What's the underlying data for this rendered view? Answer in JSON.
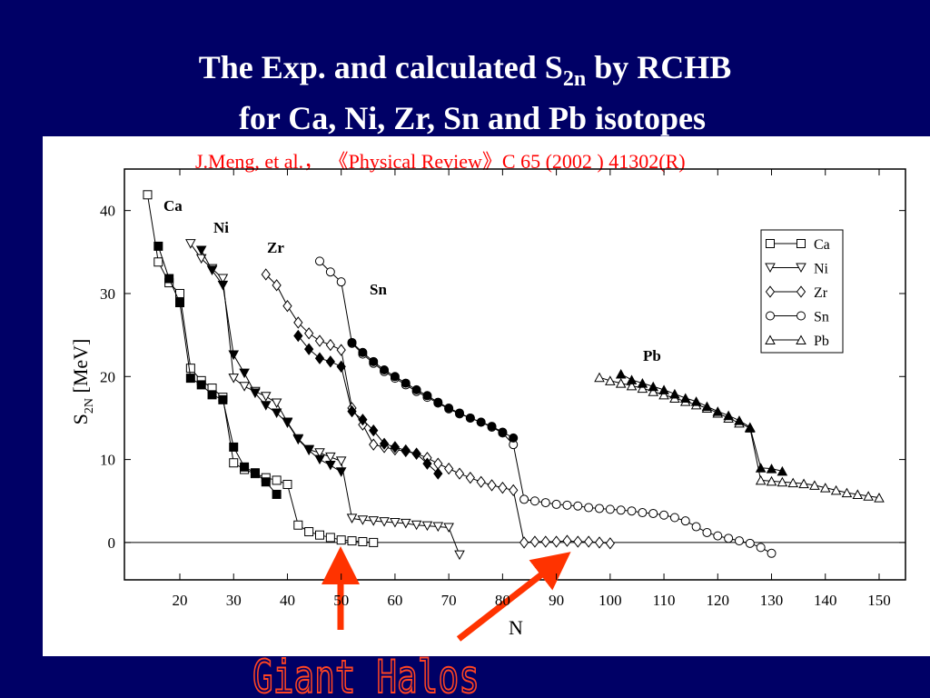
{
  "chart_data": {
    "type": "line",
    "title_line1": [
      "The Exp.  and calculated S",
      "2n",
      " by RCHB"
    ],
    "title_line2": "for Ca, Ni, Zr, Sn and Pb isotopes",
    "citation": "J.Meng, et al.， 《Physical Review》C 65 (2002 ) 41302(R)",
    "x_label": "N",
    "y_label": [
      "S",
      "2N",
      " [MeV]"
    ],
    "annotation": "Giant Halos",
    "color": "#000000",
    "xlim": [
      9.7,
      154.9
    ],
    "ylim": [
      -4.5,
      45
    ],
    "xticks": [
      20,
      30,
      40,
      50,
      60,
      70,
      80,
      90,
      100,
      110,
      120,
      130,
      140,
      150
    ],
    "yticks": [
      0,
      10,
      20,
      30,
      40
    ],
    "zero_line": true,
    "legend": "upper right",
    "series": [
      {
        "name": "Ca",
        "marker": "square",
        "x": [
          14,
          16,
          18,
          20,
          22,
          24,
          26,
          28,
          30,
          32,
          34,
          36,
          38,
          40,
          42,
          44,
          46,
          48,
          50,
          52,
          54,
          56
        ],
        "values": [
          41.9,
          33.8,
          31.3,
          30.0,
          21.0,
          19.5,
          18.6,
          17.5,
          9.6,
          8.8,
          8.3,
          7.8,
          7.5,
          7.0,
          2.1,
          1.3,
          0.9,
          0.6,
          0.3,
          0.2,
          0.1,
          0.0
        ],
        "exp_x": [
          16,
          18,
          20,
          22,
          24,
          26,
          28,
          30,
          32,
          34,
          36,
          38
        ],
        "exp_values": [
          35.7,
          31.8,
          28.9,
          19.8,
          19.0,
          17.8,
          17.2,
          11.5,
          9.1,
          8.4,
          7.3,
          5.8
        ]
      },
      {
        "name": "Ni",
        "marker": "triangle-down",
        "x": [
          22,
          24,
          26,
          28,
          30,
          32,
          34,
          36,
          38,
          40,
          42,
          44,
          46,
          48,
          50,
          52,
          54,
          56,
          58,
          60,
          62,
          64,
          66,
          68,
          70,
          72
        ],
        "values": [
          36.0,
          34.2,
          33.0,
          31.8,
          19.8,
          18.8,
          18.2,
          17.6,
          16.8,
          14.5,
          12.5,
          11.2,
          10.8,
          10.3,
          9.8,
          2.9,
          2.7,
          2.6,
          2.5,
          2.4,
          2.3,
          2.1,
          2.0,
          1.9,
          1.8,
          -1.5
        ],
        "exp_x": [
          24,
          26,
          28,
          30,
          32,
          34,
          36,
          38,
          40,
          42,
          44,
          46,
          48,
          50
        ],
        "exp_values": [
          35.2,
          32.8,
          31.0,
          22.6,
          20.4,
          18.0,
          16.5,
          15.6,
          14.4,
          12.4,
          11.1,
          10.0,
          9.3,
          8.5
        ]
      },
      {
        "name": "Zr",
        "marker": "diamond",
        "x": [
          36,
          38,
          40,
          42,
          44,
          46,
          48,
          50,
          52,
          54,
          56,
          58,
          60,
          62,
          64,
          66,
          68,
          70,
          72,
          74,
          76,
          78,
          80,
          82,
          84,
          86,
          88,
          90,
          92,
          94,
          96,
          98,
          100
        ],
        "values": [
          32.3,
          31.0,
          28.5,
          26.5,
          25.2,
          24.3,
          23.8,
          23.2,
          16.2,
          14.2,
          11.8,
          11.5,
          11.2,
          11.0,
          10.7,
          10.2,
          9.5,
          8.9,
          8.3,
          7.8,
          7.3,
          6.9,
          6.6,
          6.3,
          0.0,
          0.1,
          0.1,
          0.1,
          0.2,
          0.1,
          0.1,
          0.0,
          -0.1
        ],
        "exp_x": [
          42,
          44,
          46,
          48,
          50,
          52,
          54,
          56,
          58,
          60,
          62,
          64,
          66,
          68
        ],
        "exp_values": [
          24.9,
          23.3,
          22.2,
          21.8,
          21.2,
          15.8,
          14.8,
          13.5,
          11.9,
          11.5,
          11.1,
          10.7,
          9.5,
          8.3
        ]
      },
      {
        "name": "Sn",
        "marker": "circle",
        "x": [
          46,
          48,
          50,
          52,
          54,
          56,
          58,
          60,
          62,
          64,
          66,
          68,
          70,
          72,
          74,
          76,
          78,
          80,
          82,
          84,
          86,
          88,
          90,
          92,
          94,
          96,
          98,
          100,
          102,
          104,
          106,
          108,
          110,
          112,
          114,
          116,
          118,
          120,
          122,
          124,
          126,
          128,
          130
        ],
        "values": [
          33.9,
          32.6,
          31.4,
          24.0,
          22.7,
          21.6,
          20.6,
          19.8,
          19.0,
          18.2,
          17.5,
          16.8,
          16.1,
          15.5,
          15.0,
          14.5,
          13.9,
          13.2,
          11.8,
          5.2,
          5.0,
          4.8,
          4.6,
          4.5,
          4.4,
          4.2,
          4.1,
          4.0,
          3.9,
          3.8,
          3.6,
          3.5,
          3.3,
          3.0,
          2.6,
          1.9,
          1.2,
          0.8,
          0.5,
          0.2,
          -0.1,
          -0.6,
          -1.3
        ],
        "exp_x": [
          52,
          54,
          56,
          58,
          60,
          62,
          64,
          66,
          68,
          70,
          72,
          74,
          76,
          78,
          80,
          82
        ],
        "exp_values": [
          24.1,
          22.9,
          21.8,
          20.8,
          20.0,
          19.2,
          18.4,
          17.7,
          16.9,
          16.2,
          15.6,
          15.0,
          14.5,
          14.0,
          13.3,
          12.6
        ]
      },
      {
        "name": "Pb",
        "marker": "triangle-up",
        "x": [
          98,
          100,
          102,
          104,
          106,
          108,
          110,
          112,
          114,
          116,
          118,
          120,
          122,
          124,
          126,
          128,
          130,
          132,
          134,
          136,
          138,
          140,
          142,
          144,
          146,
          148,
          150
        ],
        "values": [
          19.9,
          19.5,
          19.2,
          18.9,
          18.6,
          18.2,
          17.8,
          17.4,
          17.0,
          16.6,
          16.2,
          15.6,
          15.0,
          14.4,
          13.8,
          7.5,
          7.4,
          7.3,
          7.2,
          7.1,
          6.9,
          6.6,
          6.3,
          6.0,
          5.8,
          5.6,
          5.4
        ],
        "exp_x": [
          102,
          104,
          106,
          108,
          110,
          112,
          114,
          116,
          118,
          120,
          122,
          124,
          126,
          128,
          130,
          132
        ],
        "exp_values": [
          20.3,
          19.6,
          19.2,
          18.8,
          18.4,
          17.9,
          17.4,
          17.0,
          16.4,
          15.8,
          15.3,
          14.7,
          13.9,
          9.0,
          8.9,
          8.6
        ]
      }
    ]
  }
}
